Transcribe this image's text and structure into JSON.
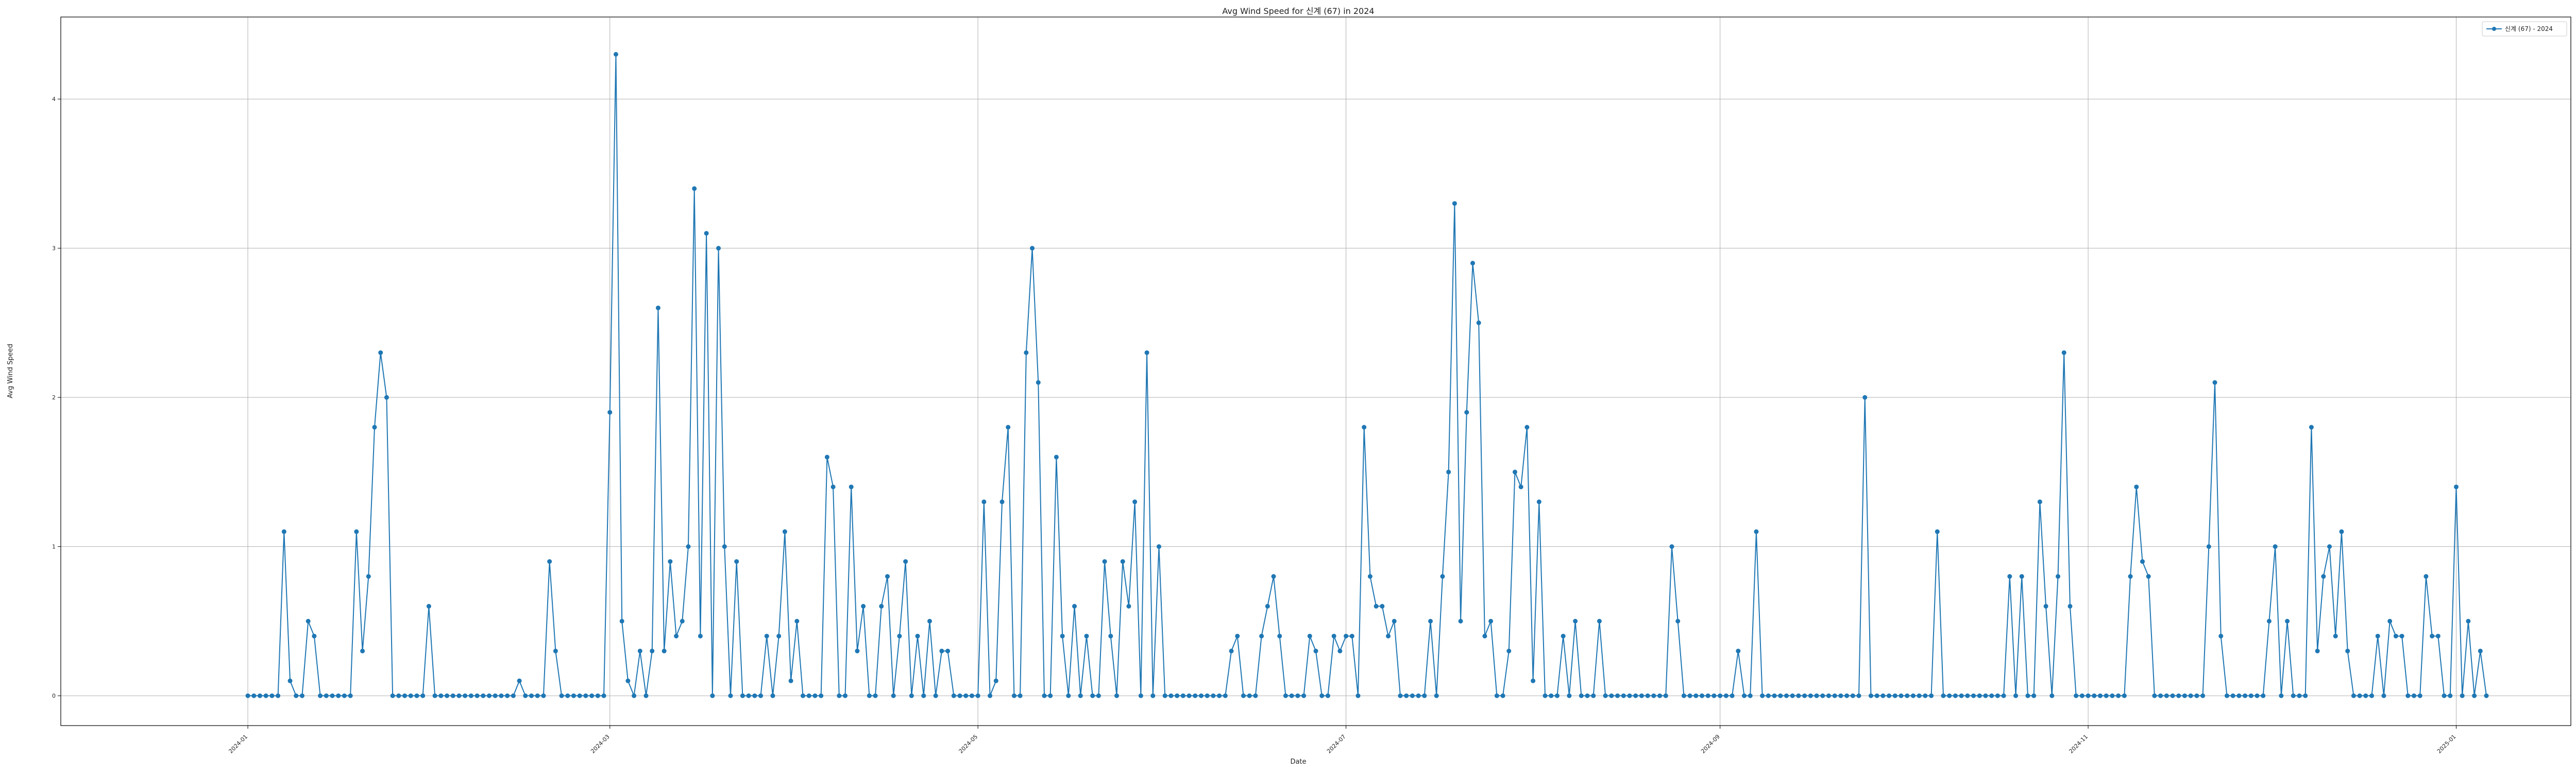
{
  "chart_data": {
    "type": "line",
    "title": "Avg Wind Speed for 신계 (67) in 2024",
    "xlabel": "Date",
    "ylabel": "Avg Wind Speed",
    "xlim": [
      "2023-12-01",
      "2025-01-20"
    ],
    "ylim": [
      -0.2,
      4.55
    ],
    "grid": true,
    "legend_position": "top-right",
    "x_ticks": [
      "2024-01",
      "2024-03",
      "2024-05",
      "2024-07",
      "2024-09",
      "2024-11",
      "2025-01"
    ],
    "y_ticks": [
      "0",
      "1",
      "2",
      "3",
      "4"
    ],
    "series": [
      {
        "name": "신계 (67) - 2024",
        "color": "#1f77b4",
        "x_start": "2024-01-01",
        "values": [
          0,
          0,
          0,
          0,
          0,
          0,
          1.1,
          0.1,
          0,
          0,
          0.5,
          0.4,
          0,
          0,
          0,
          0,
          0,
          0,
          1.1,
          0.3,
          0.8,
          1.8,
          2.3,
          2,
          0,
          0,
          0,
          0,
          0,
          0,
          0.6,
          0,
          0,
          0,
          0,
          0,
          0,
          0,
          0,
          0,
          0,
          0,
          0,
          0,
          0,
          0.1,
          0,
          0,
          0,
          0,
          0.9,
          0.3,
          0,
          0,
          0,
          0,
          0,
          0,
          0,
          0,
          1.9,
          4.3,
          0.5,
          0.1,
          0,
          0.3,
          0,
          0.3,
          2.6,
          0.3,
          0.9,
          0.4,
          0.5,
          1,
          3.4,
          0.4,
          3.1,
          0,
          3,
          1,
          0,
          0.9,
          0,
          0,
          0,
          0,
          0.4,
          0,
          0.4,
          1.1,
          0.1,
          0.5,
          0,
          0,
          0,
          0,
          1.6,
          1.4,
          0,
          0,
          1.4,
          0.3,
          0.6,
          0,
          0,
          0.6,
          0.8,
          0,
          0.4,
          0.9,
          0,
          0.4,
          0,
          0.5,
          0,
          0.3,
          0.3,
          0,
          0,
          0,
          0,
          0,
          1.3,
          0,
          0.1,
          1.3,
          1.8,
          0,
          0,
          2.3,
          3,
          2.1,
          0,
          0,
          1.6,
          0.4,
          0,
          0.6,
          0,
          0.4,
          0,
          0,
          0.9,
          0.4,
          0,
          0.9,
          0.6,
          1.3,
          0,
          2.3,
          0,
          1,
          0,
          0,
          0,
          0,
          0,
          0,
          0,
          0,
          0,
          0,
          0,
          0.3,
          0.4,
          0,
          0,
          0,
          0.4,
          0.6,
          0.8,
          0.4,
          0,
          0,
          0,
          0,
          0.4,
          0.3,
          0,
          0,
          0.4,
          0.3,
          0.4,
          0.4,
          0,
          1.8,
          0.8,
          0.6,
          0.6,
          0.4,
          0.5,
          0,
          0,
          0,
          0,
          0,
          0.5,
          0,
          0.8,
          1.5,
          3.3,
          0.5,
          1.9,
          2.9,
          2.5,
          0.4,
          0.5,
          0,
          0,
          0.3,
          1.5,
          1.4,
          1.8,
          0.1,
          1.3,
          0,
          0,
          0,
          0.4,
          0,
          0.5,
          0,
          0,
          0,
          0.5,
          0,
          0,
          0,
          0,
          0,
          0,
          0,
          0,
          0,
          0,
          0,
          1,
          0.5,
          0,
          0,
          0,
          0,
          0,
          0,
          0,
          0,
          0,
          0.3,
          0,
          0,
          1.1,
          0,
          0,
          0,
          0,
          0,
          0,
          0,
          0,
          0,
          0,
          0,
          0,
          0,
          0,
          0,
          0,
          0,
          2,
          0,
          0,
          0,
          0,
          0,
          0,
          0,
          0,
          0,
          0,
          0,
          1.1,
          0,
          0,
          0,
          0,
          0,
          0,
          0,
          0,
          0,
          0,
          0,
          0.8,
          0,
          0.8,
          0,
          0,
          1.3,
          0.6,
          0,
          0.8,
          2.3,
          0.6,
          0,
          0,
          0,
          0,
          0,
          0,
          0,
          0,
          0,
          0.8,
          1.4,
          0.9,
          0.8,
          0,
          0,
          0,
          0,
          0,
          0,
          0,
          0,
          0,
          1,
          2.1,
          0.4,
          0,
          0,
          0,
          0,
          0,
          0,
          0,
          0.5,
          1,
          0,
          0.5,
          0,
          0,
          0,
          1.8,
          0.3,
          0.8,
          1,
          0.4,
          1.1,
          0.3,
          0,
          0,
          0,
          0,
          0.4,
          0,
          0.5,
          0.4,
          0.4,
          0,
          0,
          0,
          0.8,
          0.4,
          0.4,
          0,
          0,
          1.4,
          0,
          0.5,
          0,
          0.3,
          0
        ]
      }
    ]
  }
}
